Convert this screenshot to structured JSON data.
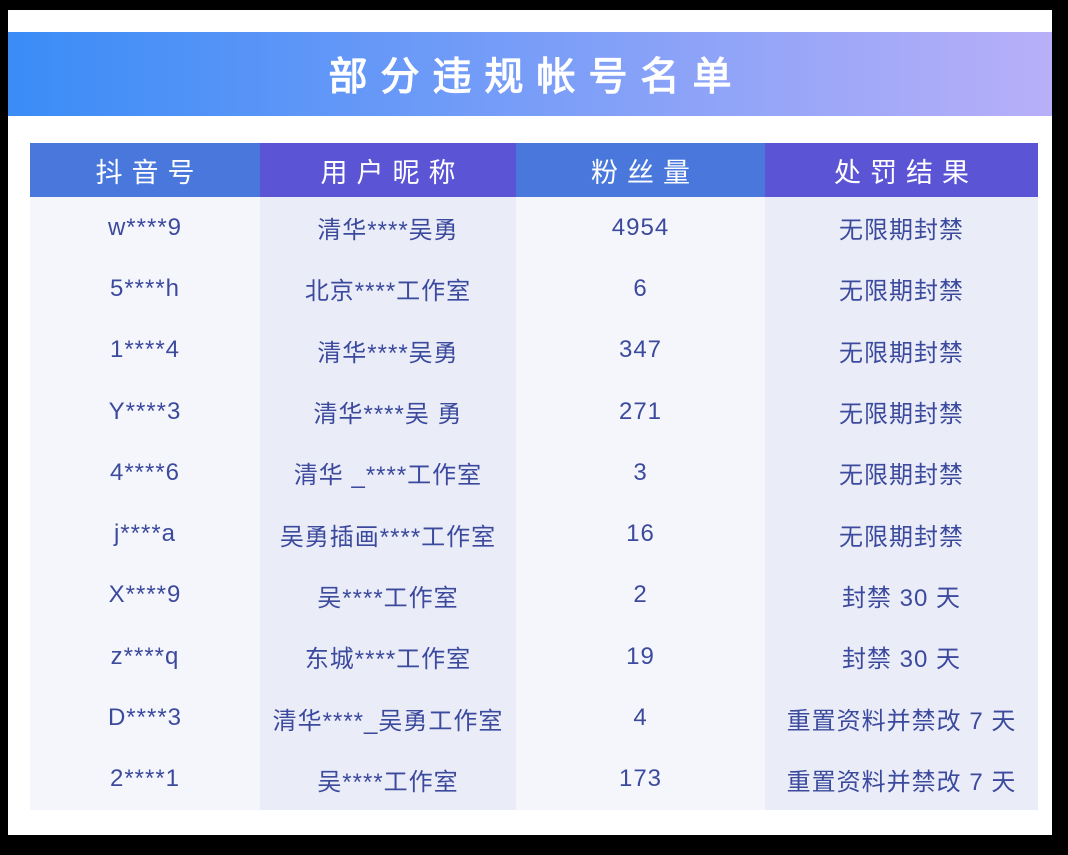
{
  "banner": {
    "title": "部分违规帐号名单"
  },
  "table": {
    "headers": [
      "抖音号",
      "用户昵称",
      "粉丝量",
      "处罚结果"
    ],
    "rows": [
      {
        "douyin_id": "w****9",
        "nickname": "清华****吴勇",
        "fans": "4954",
        "punishment": "无限期封禁"
      },
      {
        "douyin_id": "5****h",
        "nickname": "北京****工作室",
        "fans": "6",
        "punishment": "无限期封禁"
      },
      {
        "douyin_id": "1****4",
        "nickname": "清华****吴勇",
        "fans": "347",
        "punishment": "无限期封禁"
      },
      {
        "douyin_id": "Y****3",
        "nickname": "清华****吴 勇",
        "fans": "271",
        "punishment": "无限期封禁"
      },
      {
        "douyin_id": "4****6",
        "nickname": "清华 _****工作室",
        "fans": "3",
        "punishment": "无限期封禁"
      },
      {
        "douyin_id": "j****a",
        "nickname": "吴勇插画****工作室",
        "fans": "16",
        "punishment": "无限期封禁"
      },
      {
        "douyin_id": "X****9",
        "nickname": "吴****工作室",
        "fans": "2",
        "punishment": "封禁 30 天"
      },
      {
        "douyin_id": "z****q",
        "nickname": "东城****工作室",
        "fans": "19",
        "punishment": "封禁 30 天"
      },
      {
        "douyin_id": "D****3",
        "nickname": "清华****_吴勇工作室",
        "fans": "4",
        "punishment": "重置资料并禁改 7 天"
      },
      {
        "douyin_id": "2****1",
        "nickname": "吴****工作室",
        "fans": "173",
        "punishment": "重置资料并禁改 7 天"
      }
    ]
  },
  "chart_data": {
    "type": "table",
    "title": "部分违规帐号名单",
    "columns": [
      "抖音号",
      "用户昵称",
      "粉丝量",
      "处罚结果"
    ],
    "rows": [
      [
        "w****9",
        "清华****吴勇",
        4954,
        "无限期封禁"
      ],
      [
        "5****h",
        "北京****工作室",
        6,
        "无限期封禁"
      ],
      [
        "1****4",
        "清华****吴勇",
        347,
        "无限期封禁"
      ],
      [
        "Y****3",
        "清华****吴 勇",
        271,
        "无限期封禁"
      ],
      [
        "4****6",
        "清华 _****工作室",
        3,
        "无限期封禁"
      ],
      [
        "j****a",
        "吴勇插画****工作室",
        16,
        "无限期封禁"
      ],
      [
        "X****9",
        "吴****工作室",
        2,
        "封禁 30 天"
      ],
      [
        "z****q",
        "东城****工作室",
        19,
        "封禁 30 天"
      ],
      [
        "D****3",
        "清华****_吴勇工作室",
        4,
        "重置资料并禁改 7 天"
      ],
      [
        "2****1",
        "吴****工作室",
        173,
        "重置资料并禁改 7 天"
      ]
    ]
  },
  "colors": {
    "banner_gradient_start": "#3a8cf7",
    "banner_gradient_end": "#b8aff8",
    "header_blue": "#4a77dc",
    "header_purple": "#5b55d5",
    "body_col_light": "#f5f6fc",
    "body_col_lavender": "#eaecf8",
    "body_text": "#3c4a9d"
  }
}
